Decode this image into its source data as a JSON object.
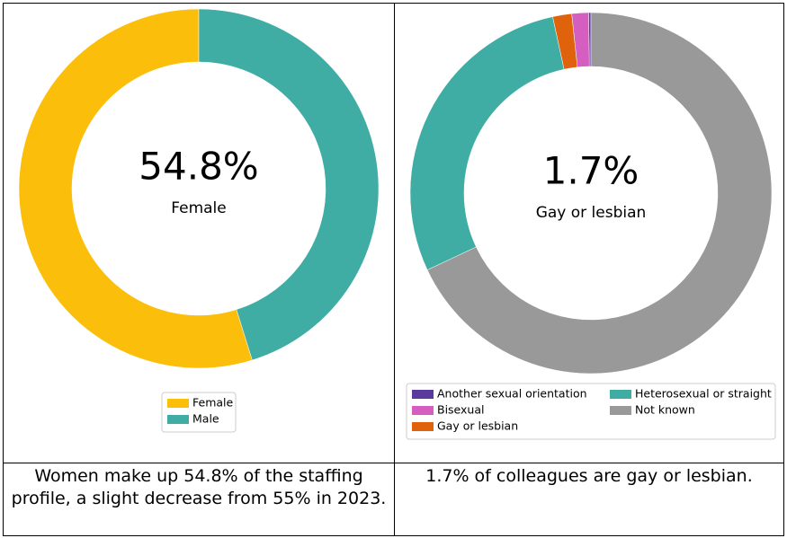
{
  "chart_data": [
    {
      "type": "pie",
      "donut": true,
      "categories": [
        "Female",
        "Male"
      ],
      "values": [
        54.8,
        45.2
      ],
      "colors": [
        "#fbbf0b",
        "#40ada5"
      ],
      "center_text": "54.8%",
      "legend_columns": 1
    },
    {
      "type": "pie",
      "donut": true,
      "categories": [
        "Another sexual orientation",
        "Bisexual",
        "Gay or lesbian",
        "Heterosexual or straight",
        "Not known"
      ],
      "values": [
        0.2,
        1.5,
        1.7,
        28.6,
        68.0
      ],
      "colors": [
        "#5b3a9e",
        "#d45fc0",
        "#e0620d",
        "#40ada5",
        "#999999"
      ],
      "center_text": "1.7%",
      "legend_columns": 2
    }
  ],
  "table": {
    "captions": [
      "Women make up 54.8% of the staffing profile, a slight decrease from 55% in 2023.",
      "1.7% of colleagues are gay or lesbian."
    ]
  }
}
